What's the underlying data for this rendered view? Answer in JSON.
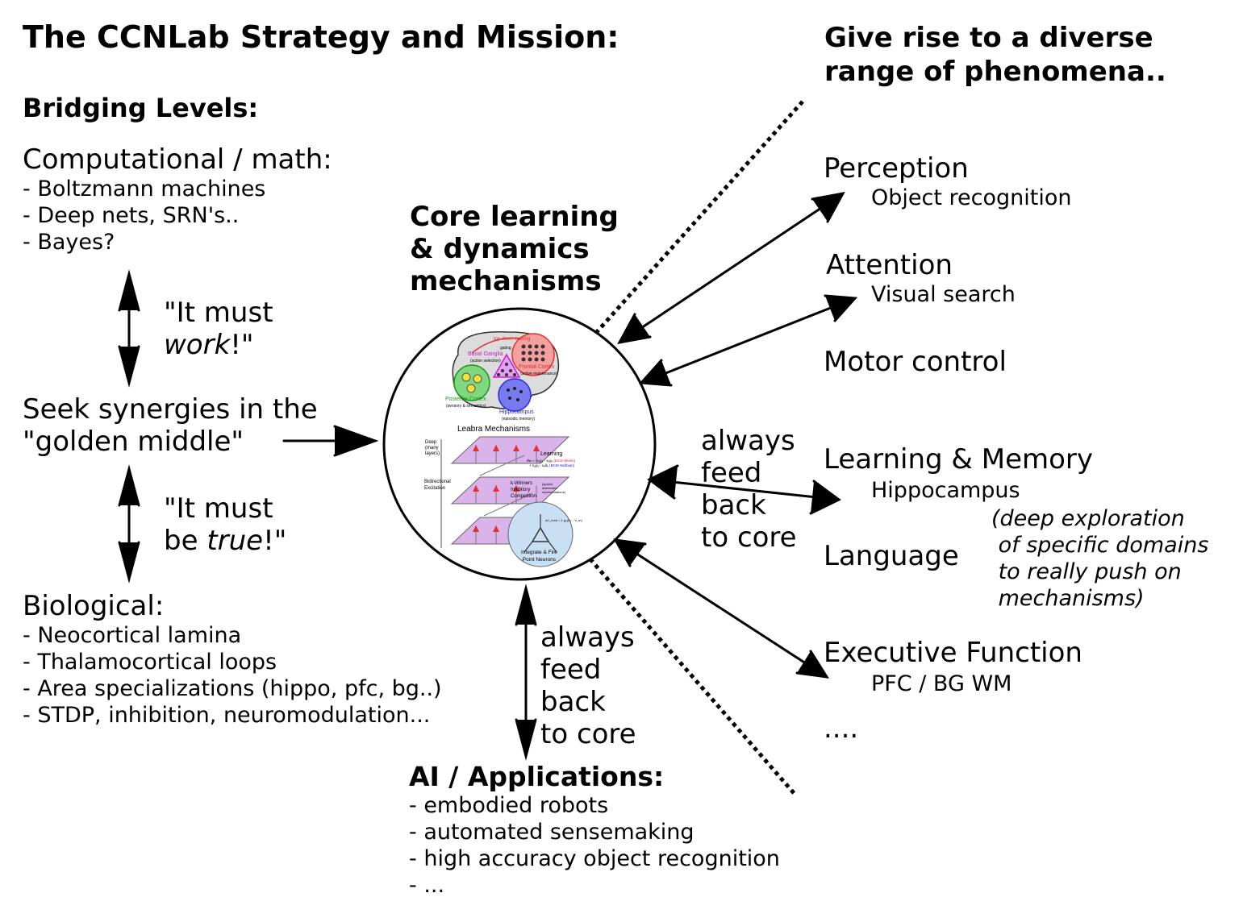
{
  "title": "The CCNLab Strategy and Mission:",
  "right_heading": [
    "Give rise to a diverse",
    "range of phenomena.."
  ],
  "bridging": {
    "heading": "Bridging Levels:",
    "computational": {
      "head": "Computational / math:",
      "items": [
        "- Boltzmann machines",
        "- Deep nets, SRN's..",
        "- Bayes?"
      ]
    },
    "must_work": {
      "line1": "\"It must",
      "line2_em": "work",
      "line2_end": "!\""
    },
    "seek": [
      "Seek synergies in the",
      "\"golden middle\""
    ],
    "must_true": {
      "line1": "\"It must",
      "line2_pre": "be ",
      "line2_em": "true",
      "line2_end": "!\""
    },
    "biological": {
      "head": "Biological:",
      "items": [
        "- Neocortical lamina",
        "- Thalamocortical loops",
        "- Area specializations (hippo, pfc, bg..)",
        "- STDP, inhibition, neuromodulation..."
      ]
    }
  },
  "core": [
    "Core learning",
    "& dynamics",
    "mechanisms"
  ],
  "feedback_right": [
    "always",
    "feed",
    "back",
    "to core"
  ],
  "feedback_bottom": [
    "always",
    "feed",
    "back",
    "to core"
  ],
  "ai": {
    "head": "AI / Applications:",
    "items": [
      "- embodied robots",
      "- automated sensemaking",
      "- high accuracy object recognition",
      "- ..."
    ]
  },
  "phenomena": {
    "perception": {
      "label": "Perception",
      "sub": "Object recognition"
    },
    "attention": {
      "label": "Attention",
      "sub": "Visual search"
    },
    "motor": {
      "label": "Motor control"
    },
    "learning": {
      "label": "Learning & Memory",
      "sub": "Hippocampus"
    },
    "language": {
      "label": "Language"
    },
    "note": [
      "(deep exploration",
      " of specific domains",
      " to really push on",
      " mechanisms)"
    ],
    "executive": {
      "label": "Executive Function",
      "sub": "PFC / BG WM"
    },
    "ellipsis": "...."
  },
  "circle": {
    "brain": {
      "top_label": "top-down biasing",
      "basal_ganglia": "Basal Ganglia",
      "basal_ganglia_sub": "(action selection)",
      "gating": "gating",
      "frontal": "Frontal Cortex",
      "frontal_sub": "(active maintenance)",
      "posterior": "Posterior Cortex",
      "posterior_sub": "(sensory & semantics)",
      "hippocampus": "Hippocampus",
      "hippocampus_sub": "(episodic memory)"
    },
    "leabra": {
      "title": "Leabra Mechanisms",
      "deep": [
        "Deep",
        "(many",
        "layers)"
      ],
      "learning": "Learning",
      "eq1": "dw = -xₐyₐ - xₑyₑ",
      "eq1_note": "(Error-driven)",
      "eq2": "+ xₐyₐ - xₑθₑ",
      "eq2_note": "(BCM Hebbian)",
      "bidir": [
        "Bidirectional",
        "Excitation"
      ],
      "kwin": [
        "k-Winners",
        "Inhibitory",
        "Competition"
      ],
      "sparse": [
        "(sparse",
        "distributed",
        "representations)"
      ],
      "neuron": [
        "Integrate & Fire",
        "Point Neurons"
      ],
      "neuron_eq": "dV_m/dt = Σ gₖ(Eₖ - V_m)"
    }
  },
  "colors": {
    "basal_ganglia": "#d21adb",
    "frontal": "#e23030",
    "posterior": "#1a9c1a",
    "hippocampus": "#2a2ad8",
    "error_driven": "#e01818",
    "bcm_hebbian": "#1a1ae0"
  }
}
